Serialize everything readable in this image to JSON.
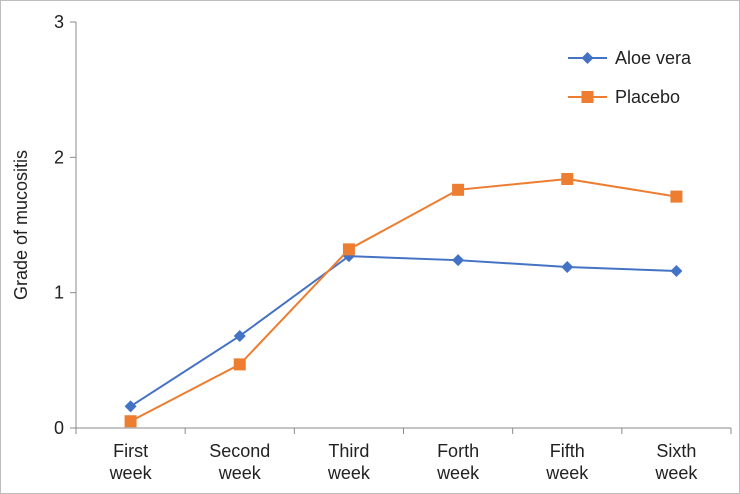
{
  "chart_data": {
    "type": "line",
    "title": "",
    "xlabel": "",
    "ylabel": "Grade of mucositis",
    "ylim": [
      0,
      3
    ],
    "yticks": [
      "0",
      "1",
      "2",
      "3"
    ],
    "categories": [
      [
        "First",
        "week"
      ],
      [
        "Second",
        "week"
      ],
      [
        "Third",
        "week"
      ],
      [
        "Forth",
        "week"
      ],
      [
        "Fifth",
        "week"
      ],
      [
        "Sixth",
        "week"
      ]
    ],
    "grid": false,
    "legend_position": "top-right",
    "series": [
      {
        "name": "Aloe vera",
        "color": "#4472C4",
        "marker": "diamond",
        "values": [
          0.16,
          0.68,
          1.27,
          1.24,
          1.19,
          1.16
        ]
      },
      {
        "name": "Placebo",
        "color": "#ED7D31",
        "marker": "square",
        "values": [
          0.05,
          0.47,
          1.32,
          1.76,
          1.84,
          1.71
        ]
      }
    ]
  }
}
